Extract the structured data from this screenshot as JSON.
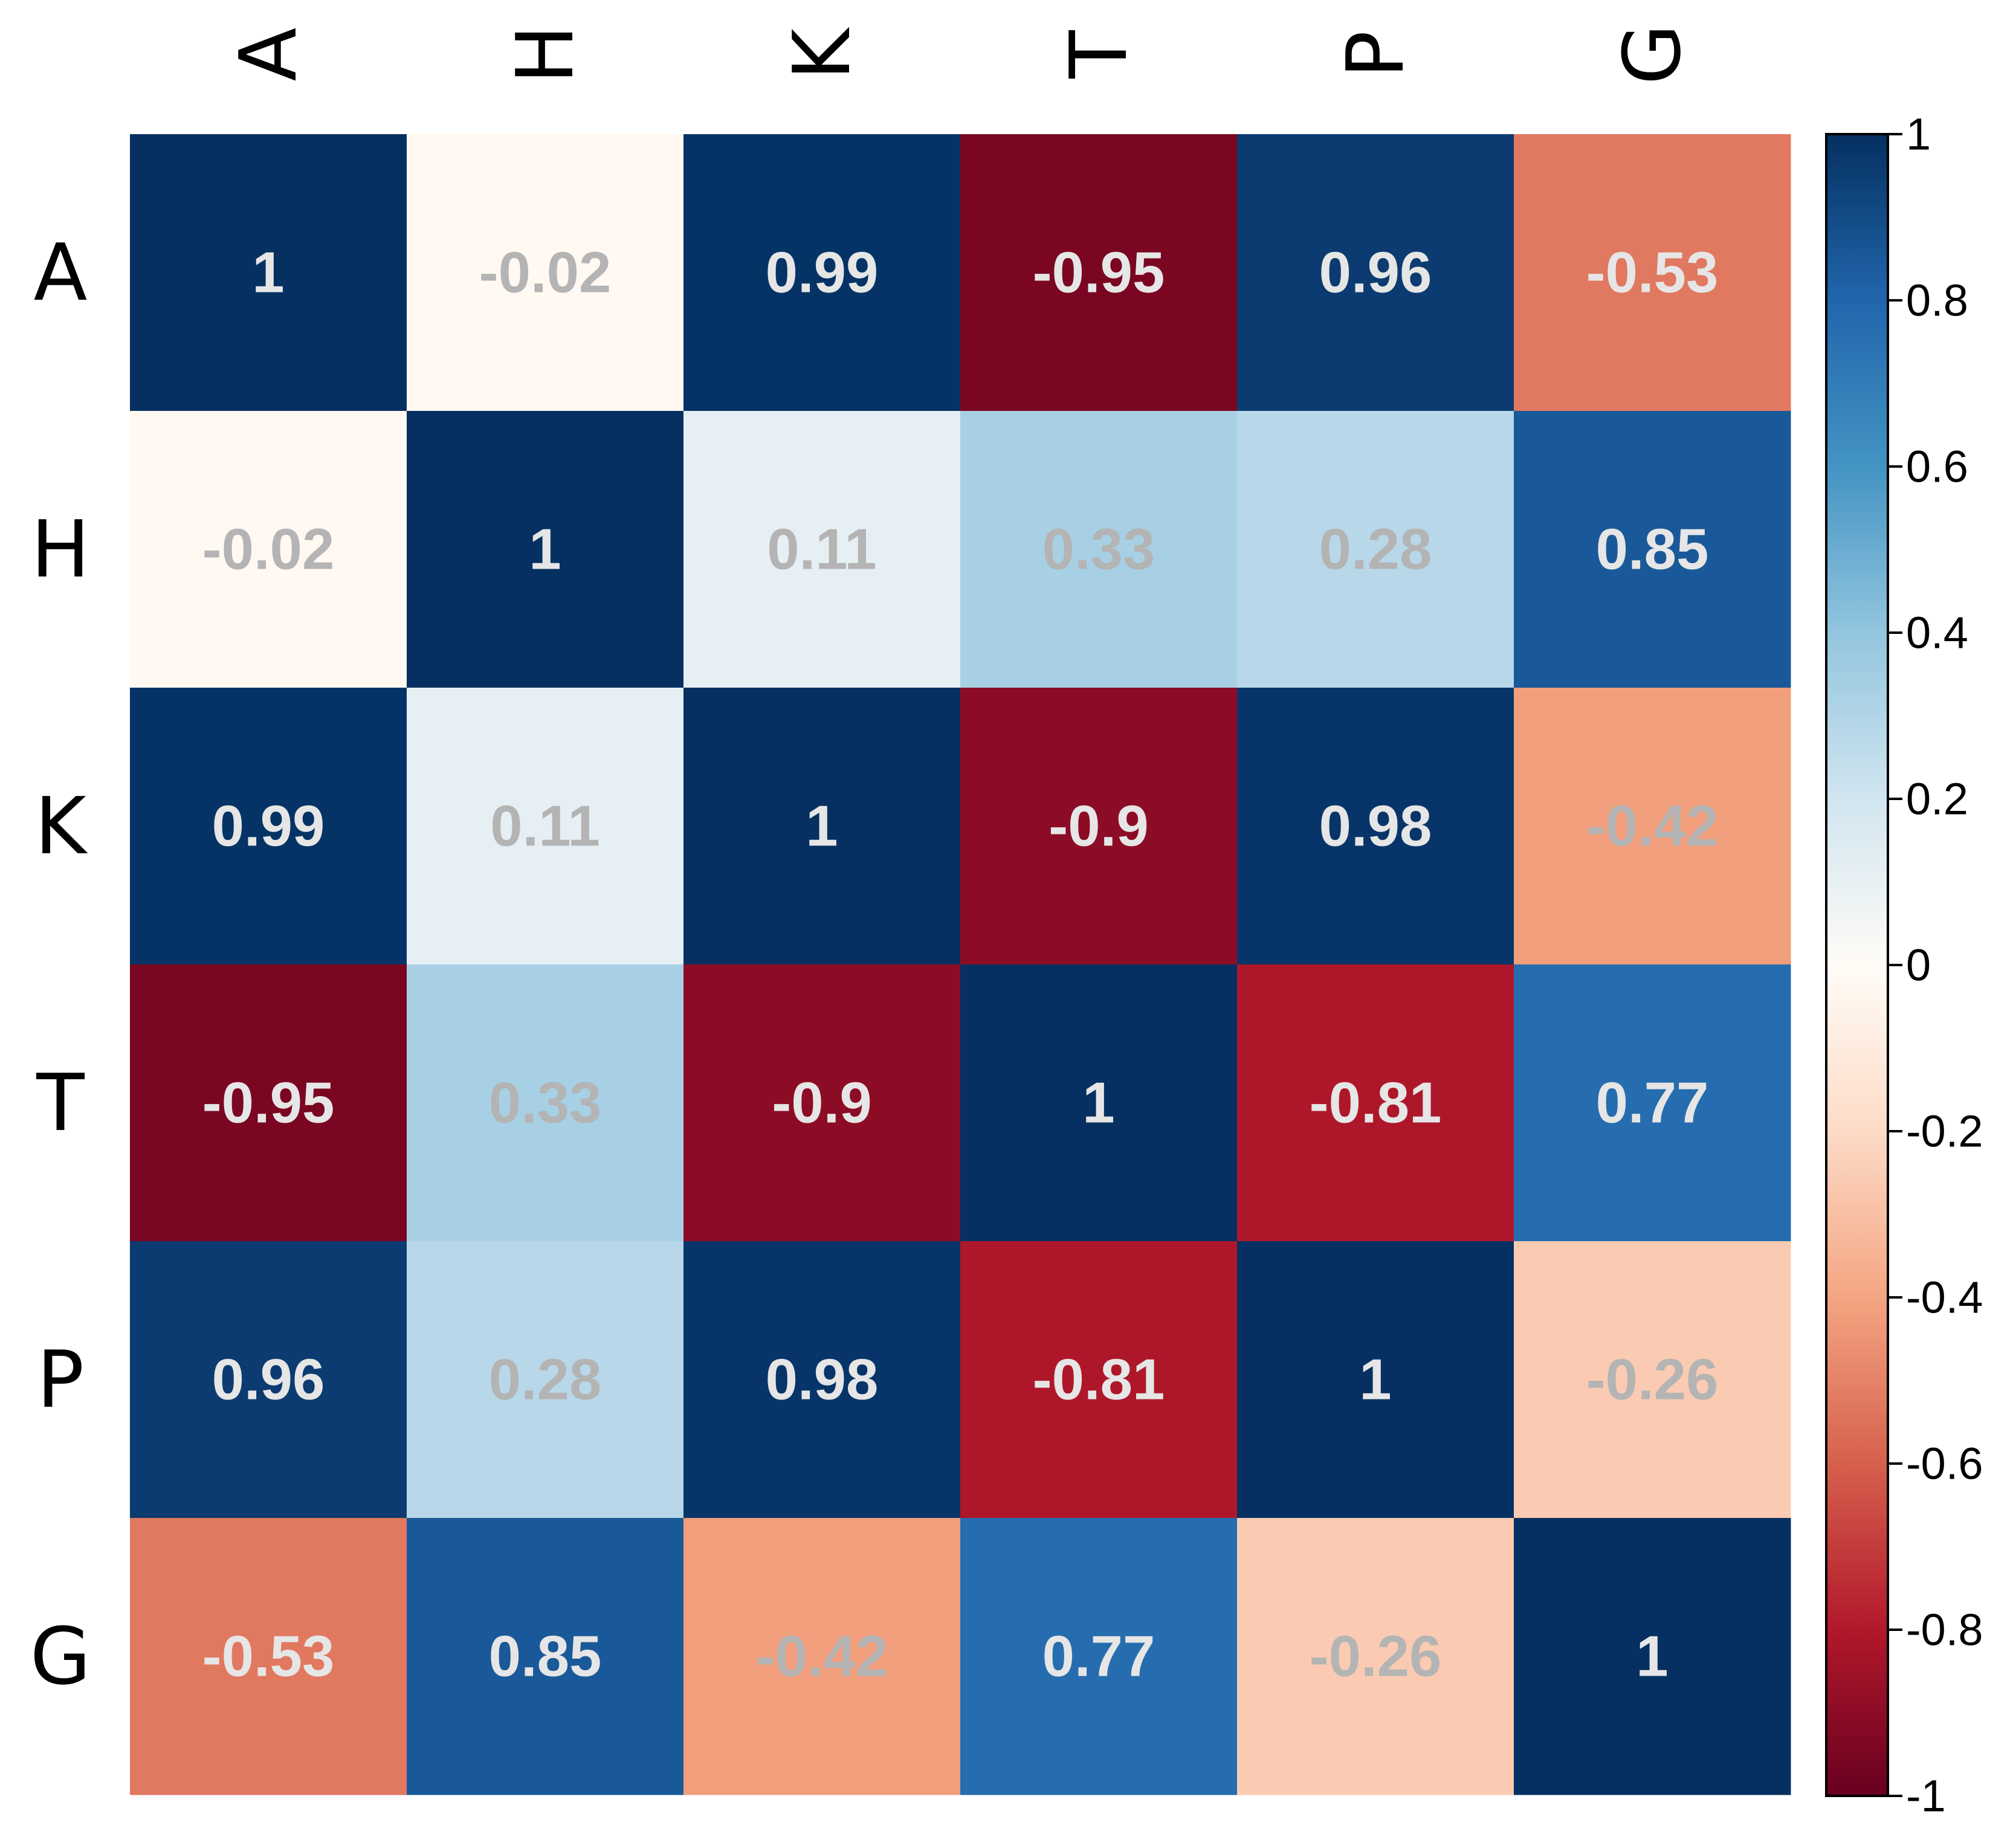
{
  "chart_data": {
    "type": "heatmap",
    "title": "",
    "xlabel": "",
    "ylabel": "",
    "variables": [
      "A",
      "H",
      "K",
      "T",
      "P",
      "G"
    ],
    "matrix": [
      [
        1,
        -0.02,
        0.99,
        -0.95,
        0.96,
        -0.53
      ],
      [
        -0.02,
        1,
        0.11,
        0.33,
        0.28,
        0.85
      ],
      [
        0.99,
        0.11,
        1,
        -0.9,
        0.98,
        -0.42
      ],
      [
        -0.95,
        0.33,
        -0.9,
        1,
        -0.81,
        0.77
      ],
      [
        0.96,
        0.28,
        0.98,
        -0.81,
        1,
        -0.26
      ],
      [
        -0.53,
        0.85,
        -0.42,
        0.77,
        -0.26,
        1
      ]
    ],
    "color_range": [
      -1,
      1
    ],
    "colorbar_ticks": [
      1,
      0.8,
      0.6,
      0.4,
      0.2,
      0,
      -0.2,
      -0.4,
      -0.6,
      -0.8,
      -1
    ],
    "colorscale": "RdBu",
    "column_labels_rotated": true,
    "colors": {
      "strong_label": "#e6e6e6",
      "weak_label": "#b4b4b4",
      "axis_text": "#000000"
    }
  }
}
